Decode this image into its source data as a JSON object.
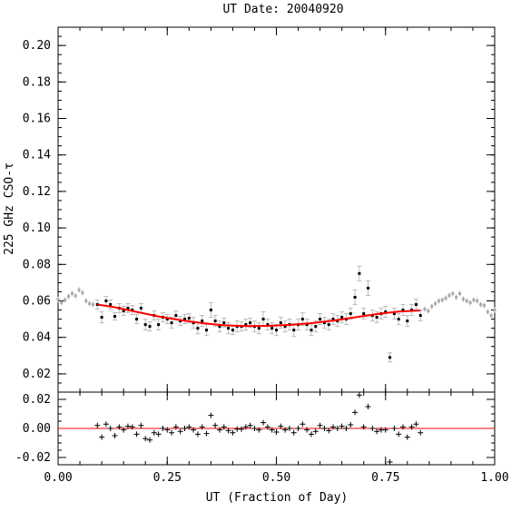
{
  "chart_data": {
    "type": "scatter",
    "title": "UT Date: 20040920",
    "xlabel": "UT (Fraction of Day)",
    "ylabel": "225 GHz CSO-τ",
    "xlim": [
      0,
      1
    ],
    "xticks": [
      "0.00",
      "0.25",
      "0.50",
      "0.75",
      "1.00"
    ],
    "main_panel": {
      "ylim": [
        0.01,
        0.21
      ],
      "yticks": [
        "0.02",
        "0.04",
        "0.06",
        "0.08",
        "0.10",
        "0.12",
        "0.14",
        "0.16",
        "0.18",
        "0.20"
      ],
      "series": [
        {
          "kind": "outside-fit-points",
          "color": "#aaaaaa",
          "points": [
            [
              0.0,
              0.0608
            ],
            [
              0.008,
              0.059
            ],
            [
              0.016,
              0.0605
            ],
            [
              0.024,
              0.0625
            ],
            [
              0.032,
              0.064
            ],
            [
              0.04,
              0.0628
            ],
            [
              0.048,
              0.066
            ],
            [
              0.056,
              0.0645
            ],
            [
              0.064,
              0.06
            ],
            [
              0.072,
              0.0585
            ],
            [
              0.08,
              0.058
            ],
            [
              0.84,
              0.0555
            ],
            [
              0.848,
              0.0545
            ],
            [
              0.856,
              0.057
            ],
            [
              0.864,
              0.0585
            ],
            [
              0.872,
              0.06
            ],
            [
              0.88,
              0.0605
            ],
            [
              0.888,
              0.0615
            ],
            [
              0.896,
              0.063
            ],
            [
              0.904,
              0.064
            ],
            [
              0.912,
              0.062
            ],
            [
              0.92,
              0.064
            ],
            [
              0.928,
              0.061
            ],
            [
              0.936,
              0.06
            ],
            [
              0.944,
              0.059
            ],
            [
              0.952,
              0.0605
            ],
            [
              0.96,
              0.06
            ],
            [
              0.968,
              0.058
            ],
            [
              0.976,
              0.0575
            ],
            [
              0.984,
              0.054
            ],
            [
              0.992,
              0.052
            ],
            [
              1.0,
              0.055
            ]
          ]
        },
        {
          "kind": "fitted-points",
          "color": "#000000",
          "points": [
            [
              0.09,
              0.058,
              0.0025
            ],
            [
              0.1,
              0.051,
              0.003
            ],
            [
              0.11,
              0.06,
              0.0025
            ],
            [
              0.12,
              0.058,
              0.0025
            ],
            [
              0.13,
              0.0515,
              0.002
            ],
            [
              0.14,
              0.056,
              0.0025
            ],
            [
              0.15,
              0.0545,
              0.0025
            ],
            [
              0.16,
              0.056,
              0.0025
            ],
            [
              0.17,
              0.055,
              0.0025
            ],
            [
              0.18,
              0.05,
              0.0025
            ],
            [
              0.19,
              0.056,
              0.0025
            ],
            [
              0.2,
              0.047,
              0.003
            ],
            [
              0.21,
              0.046,
              0.0025
            ],
            [
              0.22,
              0.052,
              0.0025
            ],
            [
              0.23,
              0.047,
              0.003
            ],
            [
              0.24,
              0.051,
              0.0025
            ],
            [
              0.25,
              0.05,
              0.0025
            ],
            [
              0.26,
              0.048,
              0.003
            ],
            [
              0.27,
              0.052,
              0.0025
            ],
            [
              0.28,
              0.049,
              0.0025
            ],
            [
              0.29,
              0.05,
              0.0025
            ],
            [
              0.3,
              0.0505,
              0.0025
            ],
            [
              0.31,
              0.048,
              0.003
            ],
            [
              0.32,
              0.045,
              0.003
            ],
            [
              0.33,
              0.049,
              0.003
            ],
            [
              0.34,
              0.044,
              0.003
            ],
            [
              0.35,
              0.055,
              0.004
            ],
            [
              0.36,
              0.049,
              0.003
            ],
            [
              0.37,
              0.046,
              0.003
            ],
            [
              0.38,
              0.048,
              0.0025
            ],
            [
              0.39,
              0.045,
              0.003
            ],
            [
              0.4,
              0.044,
              0.0025
            ],
            [
              0.41,
              0.046,
              0.003
            ],
            [
              0.42,
              0.046,
              0.0025
            ],
            [
              0.43,
              0.047,
              0.003
            ],
            [
              0.44,
              0.048,
              0.0025
            ],
            [
              0.45,
              0.046,
              0.003
            ],
            [
              0.46,
              0.045,
              0.003
            ],
            [
              0.47,
              0.05,
              0.004
            ],
            [
              0.48,
              0.047,
              0.003
            ],
            [
              0.49,
              0.045,
              0.003
            ],
            [
              0.5,
              0.044,
              0.003
            ],
            [
              0.51,
              0.048,
              0.003
            ],
            [
              0.52,
              0.046,
              0.003
            ],
            [
              0.53,
              0.047,
              0.003
            ],
            [
              0.54,
              0.044,
              0.0035
            ],
            [
              0.55,
              0.047,
              0.003
            ],
            [
              0.56,
              0.05,
              0.0035
            ],
            [
              0.57,
              0.047,
              0.003
            ],
            [
              0.58,
              0.044,
              0.003
            ],
            [
              0.59,
              0.046,
              0.003
            ],
            [
              0.6,
              0.05,
              0.003
            ],
            [
              0.61,
              0.048,
              0.003
            ],
            [
              0.62,
              0.047,
              0.003
            ],
            [
              0.63,
              0.05,
              0.003
            ],
            [
              0.64,
              0.049,
              0.003
            ],
            [
              0.65,
              0.051,
              0.003
            ],
            [
              0.66,
              0.05,
              0.003
            ],
            [
              0.67,
              0.053,
              0.003
            ],
            [
              0.68,
              0.062,
              0.004
            ],
            [
              0.69,
              0.075,
              0.004
            ],
            [
              0.7,
              0.053,
              0.003
            ],
            [
              0.71,
              0.067,
              0.004
            ],
            [
              0.72,
              0.052,
              0.003
            ],
            [
              0.73,
              0.051,
              0.003
            ],
            [
              0.74,
              0.053,
              0.003
            ],
            [
              0.75,
              0.054,
              0.003
            ],
            [
              0.76,
              0.029,
              0.0025
            ],
            [
              0.77,
              0.053,
              0.003
            ],
            [
              0.78,
              0.05,
              0.003
            ],
            [
              0.79,
              0.055,
              0.003
            ],
            [
              0.8,
              0.049,
              0.003
            ],
            [
              0.81,
              0.055,
              0.003
            ],
            [
              0.82,
              0.058,
              0.003
            ],
            [
              0.83,
              0.052,
              0.003
            ]
          ]
        }
      ],
      "fit": {
        "color": "#ff0000",
        "x_range": [
          0.09,
          0.83
        ],
        "curve": [
          [
            0.09,
            0.058
          ],
          [
            0.13,
            0.0565
          ],
          [
            0.18,
            0.054
          ],
          [
            0.23,
            0.0515
          ],
          [
            0.28,
            0.0495
          ],
          [
            0.33,
            0.0478
          ],
          [
            0.38,
            0.0466
          ],
          [
            0.43,
            0.0462
          ],
          [
            0.48,
            0.0463
          ],
          [
            0.53,
            0.0468
          ],
          [
            0.58,
            0.0478
          ],
          [
            0.63,
            0.0492
          ],
          [
            0.68,
            0.051
          ],
          [
            0.73,
            0.0528
          ],
          [
            0.78,
            0.0542
          ],
          [
            0.83,
            0.0548
          ]
        ]
      }
    },
    "residual_panel": {
      "ylim": [
        -0.025,
        0.025
      ],
      "yticks": [
        "-0.02",
        "0.00",
        "0.02"
      ],
      "zero_line_color": "#ff0000",
      "residuals": [
        [
          0.09,
          0.002
        ],
        [
          0.1,
          -0.006
        ],
        [
          0.11,
          0.003
        ],
        [
          0.12,
          0.0
        ],
        [
          0.13,
          -0.005
        ],
        [
          0.14,
          0.001
        ],
        [
          0.15,
          -0.001
        ],
        [
          0.16,
          0.0015
        ],
        [
          0.17,
          0.001
        ],
        [
          0.18,
          -0.004
        ],
        [
          0.19,
          0.002
        ],
        [
          0.2,
          -0.007
        ],
        [
          0.21,
          -0.008
        ],
        [
          0.22,
          -0.003
        ],
        [
          0.23,
          -0.004
        ],
        [
          0.24,
          0.0
        ],
        [
          0.25,
          -0.001
        ],
        [
          0.26,
          -0.003
        ],
        [
          0.27,
          0.001
        ],
        [
          0.28,
          -0.002
        ],
        [
          0.29,
          0.0
        ],
        [
          0.3,
          0.001
        ],
        [
          0.31,
          -0.001
        ],
        [
          0.32,
          -0.004
        ],
        [
          0.33,
          0.001
        ],
        [
          0.34,
          -0.0035
        ],
        [
          0.35,
          0.009
        ],
        [
          0.36,
          0.002
        ],
        [
          0.37,
          -0.001
        ],
        [
          0.38,
          0.001
        ],
        [
          0.39,
          -0.0015
        ],
        [
          0.4,
          -0.003
        ],
        [
          0.41,
          -0.0005
        ],
        [
          0.42,
          -0.0005
        ],
        [
          0.43,
          0.001
        ],
        [
          0.44,
          0.002
        ],
        [
          0.45,
          0.0
        ],
        [
          0.46,
          -0.001
        ],
        [
          0.47,
          0.004
        ],
        [
          0.48,
          0.001
        ],
        [
          0.49,
          -0.001
        ],
        [
          0.5,
          -0.0025
        ],
        [
          0.51,
          0.0015
        ],
        [
          0.52,
          -0.001
        ],
        [
          0.53,
          0.0
        ],
        [
          0.54,
          -0.003
        ],
        [
          0.55,
          0.0
        ],
        [
          0.56,
          0.003
        ],
        [
          0.57,
          -0.001
        ],
        [
          0.58,
          -0.004
        ],
        [
          0.59,
          -0.002
        ],
        [
          0.6,
          0.002
        ],
        [
          0.61,
          0.0
        ],
        [
          0.62,
          -0.0015
        ],
        [
          0.63,
          0.001
        ],
        [
          0.64,
          0.0
        ],
        [
          0.65,
          0.0015
        ],
        [
          0.66,
          0.0
        ],
        [
          0.67,
          0.0025
        ],
        [
          0.68,
          0.011
        ],
        [
          0.69,
          0.023
        ],
        [
          0.7,
          0.001
        ],
        [
          0.71,
          0.015
        ],
        [
          0.72,
          0.0
        ],
        [
          0.73,
          -0.002
        ],
        [
          0.74,
          -0.001
        ],
        [
          0.75,
          -0.001
        ],
        [
          0.76,
          -0.0245
        ],
        [
          0.77,
          0.0
        ],
        [
          0.78,
          -0.004
        ],
        [
          0.79,
          0.001
        ],
        [
          0.8,
          -0.006
        ],
        [
          0.81,
          0.001
        ],
        [
          0.82,
          0.003
        ],
        [
          0.83,
          -0.003
        ]
      ]
    }
  }
}
